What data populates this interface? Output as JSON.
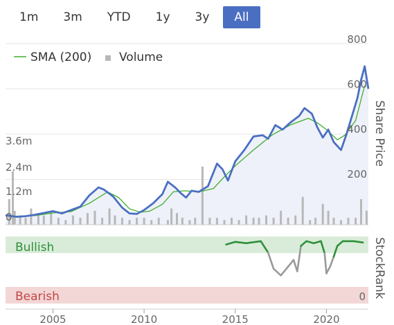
{
  "range_buttons": [
    {
      "label": "1m",
      "active": false
    },
    {
      "label": "3m",
      "active": false
    },
    {
      "label": "YTD",
      "active": false
    },
    {
      "label": "1y",
      "active": false
    },
    {
      "label": "3y",
      "active": false
    },
    {
      "label": "All",
      "active": true
    }
  ],
  "colors": {
    "price": "#4a6fc2",
    "sma": "#3fae2a",
    "volume": "#b8b8b8",
    "area": "#eef1f9",
    "bullish_band": "#d9ecd9",
    "bearish_band": "#f3d6d6",
    "rank_bull": "#2f8f3a",
    "rank_bear": "#999999"
  },
  "chart_data": {
    "type": "line",
    "legend": [
      {
        "name": "SMA (200)",
        "symbol": "line"
      },
      {
        "name": "Volume",
        "symbol": "square"
      }
    ],
    "x_ticks": [
      "2005",
      "2010",
      "2015",
      "2020"
    ],
    "xlim": [
      2002.4,
      2022.3
    ],
    "price_axis": {
      "label": "Share Price",
      "ticks": [
        "200",
        "400",
        "600",
        "800"
      ],
      "ylim": [
        0,
        800
      ]
    },
    "volume_axis": {
      "ticks": [
        "0",
        "1.2m",
        "2.4m",
        "3.6m"
      ],
      "ylim": [
        0,
        3.6
      ]
    },
    "stockrank": {
      "label": "StockRank",
      "bullish_label": "Bullish",
      "bearish_label": "Bearish",
      "zero_label": "0",
      "points": [
        [
          2014.5,
          88
        ],
        [
          2015.0,
          92
        ],
        [
          2015.6,
          90
        ],
        [
          2016.4,
          93
        ],
        [
          2016.8,
          76
        ],
        [
          2017.1,
          52
        ],
        [
          2017.5,
          42
        ],
        [
          2017.9,
          55
        ],
        [
          2018.2,
          65
        ],
        [
          2018.4,
          48
        ],
        [
          2018.6,
          86
        ],
        [
          2018.9,
          93
        ],
        [
          2019.3,
          90
        ],
        [
          2019.7,
          93
        ],
        [
          2019.9,
          75
        ],
        [
          2020.0,
          45
        ],
        [
          2020.2,
          55
        ],
        [
          2020.4,
          70
        ],
        [
          2020.6,
          86
        ],
        [
          2020.9,
          93
        ],
        [
          2021.5,
          93
        ],
        [
          2022.0,
          91
        ]
      ]
    },
    "series": [
      {
        "name": "Share Price",
        "x": [
          2002.4,
          2003.0,
          2003.5,
          2004.0,
          2004.5,
          2005.0,
          2005.5,
          2006.0,
          2006.5,
          2007.0,
          2007.5,
          2007.8,
          2008.3,
          2008.8,
          2009.2,
          2009.6,
          2010.0,
          2010.5,
          2011.0,
          2011.3,
          2011.7,
          2012.0,
          2012.3,
          2012.6,
          2013.0,
          2013.5,
          2014.0,
          2014.3,
          2014.6,
          2015.0,
          2015.5,
          2016.0,
          2016.5,
          2016.8,
          2017.2,
          2017.6,
          2018.0,
          2018.5,
          2018.8,
          2019.2,
          2019.5,
          2019.8,
          2020.1,
          2020.4,
          2020.8,
          2021.1,
          2021.4,
          2021.7,
          2021.9,
          2022.1,
          2022.3
        ],
        "values": [
          42,
          35,
          38,
          44,
          52,
          60,
          50,
          65,
          80,
          130,
          165,
          155,
          125,
          75,
          50,
          48,
          65,
          95,
          135,
          190,
          165,
          140,
          120,
          150,
          145,
          170,
          270,
          245,
          195,
          280,
          330,
          390,
          395,
          380,
          440,
          420,
          450,
          480,
          515,
          490,
          430,
          385,
          420,
          365,
          330,
          400,
          480,
          560,
          640,
          700,
          600
        ]
      },
      {
        "name": "SMA (200)",
        "x": [
          2002.4,
          2003.0,
          2004.0,
          2005.0,
          2006.0,
          2007.0,
          2008.0,
          2008.6,
          2009.2,
          2009.8,
          2010.3,
          2011.0,
          2011.6,
          2012.2,
          2013.0,
          2013.8,
          2014.5,
          2015.0,
          2016.0,
          2017.0,
          2018.0,
          2019.0,
          2019.5,
          2020.0,
          2020.6,
          2021.0,
          2021.6,
          2022.1
        ],
        "values": [
          40,
          38,
          40,
          52,
          58,
          95,
          145,
          120,
          70,
          55,
          60,
          90,
          145,
          150,
          145,
          160,
          220,
          260,
          330,
          395,
          440,
          470,
          450,
          420,
          375,
          395,
          460,
          615
        ]
      },
      {
        "name": "Volume",
        "type": "bar",
        "x": [
          2002.6,
          2002.8,
          2002.9,
          2003.2,
          2003.5,
          2003.8,
          2004.2,
          2004.5,
          2004.9,
          2005.3,
          2005.7,
          2006.1,
          2006.5,
          2006.9,
          2007.3,
          2007.7,
          2008.1,
          2008.4,
          2008.8,
          2009.2,
          2009.6,
          2010.0,
          2010.4,
          2010.8,
          2011.3,
          2011.5,
          2011.8,
          2012.1,
          2012.5,
          2012.8,
          2013.2,
          2013.6,
          2014.0,
          2014.4,
          2014.8,
          2015.2,
          2015.6,
          2016.0,
          2016.3,
          2016.7,
          2017.1,
          2017.5,
          2017.9,
          2018.3,
          2018.7,
          2019.1,
          2019.4,
          2019.8,
          2020.1,
          2020.4,
          2020.8,
          2021.2,
          2021.6,
          2021.9,
          2022.2
        ],
        "values": [
          1.1,
          2.3,
          0.6,
          0.4,
          0.3,
          0.7,
          0.5,
          0.4,
          0.6,
          0.3,
          0.2,
          0.4,
          0.3,
          0.5,
          0.6,
          0.3,
          0.7,
          0.4,
          0.3,
          0.2,
          0.3,
          0.3,
          0.2,
          0.3,
          0.2,
          0.7,
          0.5,
          0.3,
          0.2,
          0.3,
          2.5,
          0.3,
          0.3,
          0.2,
          0.3,
          0.2,
          0.4,
          0.3,
          0.3,
          0.4,
          0.3,
          0.6,
          0.3,
          0.4,
          1.2,
          0.2,
          0.3,
          0.9,
          0.6,
          0.3,
          0.2,
          0.3,
          0.3,
          1.1,
          0.6
        ]
      }
    ]
  }
}
